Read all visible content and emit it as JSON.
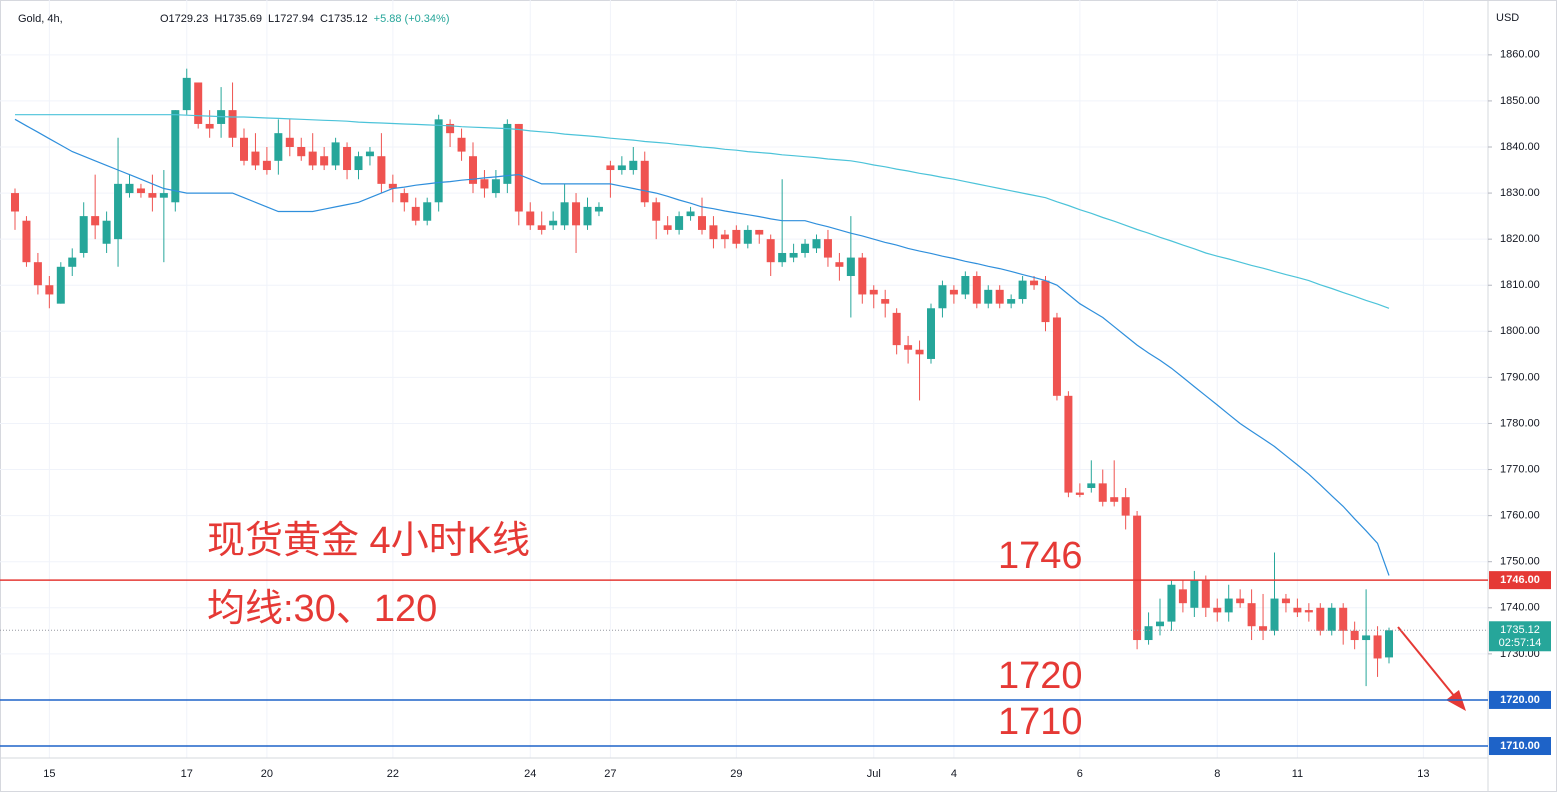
{
  "chart_data": {
    "type": "candlestick",
    "symbol": "Gold, 4h,",
    "ohlc_header": [
      "O1729.23",
      "H1735.69",
      "L1727.94",
      "C1735.12",
      "+5.88 (+0.34%)"
    ],
    "currency": "USD",
    "annotations": [
      "现货黄金 4小时K线",
      "均线:30、120"
    ],
    "up_color": "#26a69a",
    "down_color": "#ef5350",
    "grid": true,
    "ylim": [
      1707.4,
      1871.9
    ],
    "yticks": [
      {
        "value": 1730,
        "label": "1730.00"
      },
      {
        "value": 1740,
        "label": "1740.00"
      },
      {
        "value": 1750,
        "label": "1750.00"
      },
      {
        "value": 1760,
        "label": "1760.00"
      },
      {
        "value": 1770,
        "label": "1770.00"
      },
      {
        "value": 1780,
        "label": "1780.00"
      },
      {
        "value": 1790,
        "label": "1790.00"
      },
      {
        "value": 1800,
        "label": "1800.00"
      },
      {
        "value": 1810,
        "label": "1810.00"
      },
      {
        "value": 1820,
        "label": "1820.00"
      },
      {
        "value": 1830,
        "label": "1830.00"
      },
      {
        "value": 1840,
        "label": "1840.00"
      },
      {
        "value": 1850,
        "label": "1850.00"
      },
      {
        "value": 1860,
        "label": "1860.00"
      }
    ],
    "price_lines": [
      {
        "value": 1746,
        "label": "1746.00",
        "color": "#e53935"
      },
      {
        "value": 1720,
        "label": "1720.00",
        "color": "#1e63c8"
      },
      {
        "value": 1710,
        "label": "1710.00",
        "color": "#1e63c8"
      }
    ],
    "last_price": {
      "value": 1735.12,
      "label": "1735.12",
      "countdown": "02:57:14",
      "color": "#26a69a"
    },
    "categories": [
      null,
      null,
      null,
      "15",
      null,
      null,
      null,
      null,
      null,
      null,
      null,
      null,
      null,
      null,
      null,
      "17",
      null,
      null,
      null,
      null,
      null,
      null,
      "20",
      null,
      null,
      null,
      null,
      null,
      null,
      null,
      null,
      null,
      null,
      "22",
      null,
      null,
      null,
      null,
      null,
      null,
      null,
      null,
      null,
      null,
      null,
      "24",
      null,
      null,
      null,
      null,
      null,
      null,
      "27",
      null,
      null,
      null,
      null,
      null,
      null,
      null,
      null,
      null,
      null,
      "29",
      null,
      null,
      null,
      null,
      null,
      null,
      null,
      null,
      null,
      null,
      null,
      "Jul",
      null,
      null,
      null,
      null,
      null,
      null,
      "4",
      null,
      null,
      null,
      null,
      null,
      null,
      null,
      null,
      null,
      null,
      "6",
      null,
      null,
      null,
      null,
      null,
      null,
      null,
      null,
      null,
      null,
      null,
      "8",
      null,
      null,
      null,
      null,
      null,
      null,
      "11",
      null,
      null,
      null,
      null,
      null,
      null,
      null,
      null,
      null,
      null,
      "13",
      null,
      null,
      null,
      null,
      null
    ],
    "open": [
      1830,
      1824,
      1815,
      1810,
      1806,
      1814,
      1817,
      1825,
      1819,
      1820,
      1830,
      1831,
      1830,
      1829,
      1828,
      1848,
      1854,
      1845,
      1845,
      1848,
      1842,
      1839,
      1837,
      1837,
      1842,
      1840,
      1839,
      1838,
      1836,
      1840,
      1835,
      1838,
      1838,
      1832,
      1830,
      1827,
      1824,
      1828,
      1845,
      1842,
      1838,
      1833,
      1830,
      1832,
      1845,
      1826,
      1823,
      1823,
      1823,
      1828,
      1823,
      1826,
      1836,
      1835,
      1835,
      1837,
      1828,
      1823,
      1822,
      1825,
      1825,
      1823,
      1821,
      1822,
      1819,
      1822,
      1820,
      1815,
      1816,
      1817,
      1818,
      1820,
      1815,
      1812,
      1816,
      1809,
      1807,
      1804,
      1797,
      1796,
      1794,
      1805,
      1809,
      1808,
      1812,
      1806,
      1809,
      1806,
      1807,
      1811,
      1811,
      1803,
      1786,
      1765,
      1766,
      1767,
      1764,
      1764,
      1760,
      1733,
      1736,
      1737,
      1744,
      1740,
      1746,
      1740,
      1739,
      1742,
      1741,
      1736,
      1735,
      1742,
      1740,
      1739.5,
      1740,
      1735,
      1740,
      1735,
      1733,
      1734,
      1729.23,
      null,
      null,
      null,
      null,
      null,
      null,
      null,
      null
    ],
    "high": [
      1831,
      1825,
      1817,
      1812,
      1815,
      1818,
      1828,
      1834,
      1826,
      1842,
      1834,
      1832,
      1834,
      1835,
      1848,
      1857,
      1854,
      1848,
      1853,
      1854,
      1844,
      1843,
      1840,
      1846,
      1846,
      1842,
      1843,
      1840,
      1842,
      1841,
      1839,
      1840,
      1843,
      1834,
      1831,
      1829,
      1829,
      1847,
      1846,
      1844,
      1841,
      1835,
      1835,
      1846,
      1845,
      1828,
      1826,
      1826,
      1832,
      1830,
      1829,
      1828,
      1837,
      1838,
      1840,
      1839,
      1829,
      1825,
      1826,
      1827,
      1829,
      1825,
      1822,
      1823,
      1823,
      1822,
      1821,
      1833,
      1819,
      1820,
      1821,
      1822,
      1817,
      1825,
      1817,
      1810,
      1809,
      1805,
      1799,
      1798,
      1806,
      1811,
      1810,
      1813,
      1813,
      1810,
      1810,
      1808,
      1812,
      1812,
      1812,
      1804,
      1787,
      1767,
      1772,
      1770,
      1772,
      1766,
      1761,
      1739,
      1742,
      1746,
      1746,
      1748,
      1747,
      1742,
      1745,
      1744,
      1744,
      1743,
      1752,
      1743,
      1742,
      1741,
      1741,
      1741,
      1741,
      1737,
      1744,
      1736,
      1735.69,
      null,
      null,
      null,
      null,
      null,
      null,
      null,
      null
    ],
    "low": [
      1822,
      1814,
      1808,
      1805,
      1806,
      1812,
      1816,
      1820,
      1817,
      1814,
      1829,
      1829,
      1826,
      1815,
      1826,
      1847,
      1844,
      1842,
      1842,
      1840,
      1836,
      1835,
      1834,
      1834,
      1838,
      1837,
      1835,
      1835,
      1835,
      1833,
      1833,
      1836,
      1830,
      1828,
      1826,
      1823,
      1823,
      1826,
      1840,
      1837,
      1830,
      1829,
      1829,
      1830,
      1823,
      1822,
      1821,
      1822,
      1822,
      1817,
      1822,
      1825,
      1829,
      1834,
      1834,
      1827,
      1820,
      1821,
      1821,
      1824,
      1821,
      1818,
      1818,
      1818,
      1818,
      1819,
      1812,
      1814,
      1815,
      1816,
      1817,
      1814,
      1811,
      1803,
      1806,
      1805,
      1803,
      1795,
      1793,
      1785,
      1793,
      1803,
      1806,
      1807,
      1805,
      1805,
      1805,
      1805,
      1806,
      1809,
      1800,
      1785,
      1764,
      1764,
      1765,
      1762,
      1762,
      1757,
      1731,
      1732,
      1734,
      1735,
      1739,
      1738,
      1738,
      1737,
      1737,
      1740,
      1733,
      1733,
      1734,
      1739,
      1738,
      1737,
      1734,
      1734,
      1732,
      1731,
      1723,
      1725,
      1727.94,
      null,
      null,
      null,
      null,
      null,
      null,
      null,
      null
    ],
    "close": [
      1826,
      1815,
      1810,
      1808,
      1814,
      1816,
      1825,
      1823,
      1824,
      1832,
      1832,
      1830,
      1829,
      1830,
      1848,
      1855,
      1845,
      1844,
      1848,
      1842,
      1837,
      1836,
      1835,
      1843,
      1840,
      1838,
      1836,
      1836,
      1841,
      1835,
      1838,
      1839,
      1832,
      1831,
      1828,
      1824,
      1828,
      1846,
      1843,
      1839,
      1832,
      1831,
      1833,
      1845,
      1826,
      1823,
      1822,
      1824,
      1828,
      1823,
      1827,
      1827,
      1835,
      1836,
      1837,
      1828,
      1824,
      1822,
      1825,
      1826,
      1822,
      1820,
      1820,
      1819,
      1822,
      1821,
      1815,
      1817,
      1817,
      1819,
      1820,
      1816,
      1814,
      1816,
      1808,
      1808,
      1806,
      1797,
      1796,
      1795,
      1805,
      1810,
      1808,
      1812,
      1806,
      1809,
      1806,
      1807,
      1811,
      1810,
      1802,
      1786,
      1765,
      1764.5,
      1767,
      1763,
      1763,
      1760,
      1733,
      1736,
      1737,
      1745,
      1741,
      1746,
      1740,
      1739,
      1742,
      1741,
      1736,
      1735,
      1742,
      1741,
      1739,
      1739,
      1735,
      1740,
      1735,
      1733,
      1734,
      1729,
      1735.12,
      null,
      null,
      null,
      null,
      null,
      null,
      null,
      null
    ],
    "series": [
      {
        "color": "#2f8fdc",
        "values": [
          1846,
          1844.6,
          1843.2,
          1841.8,
          1840.4,
          1839,
          1838,
          1837,
          1836,
          1835,
          1834,
          1833,
          1832,
          1831,
          1830.5,
          1830,
          1830,
          1830,
          1830,
          1830,
          1829,
          1828,
          1827,
          1826,
          1826,
          1826,
          1826,
          1826.5,
          1827,
          1827.5,
          1828,
          1829,
          1830,
          1831,
          1831.3,
          1831.7,
          1832,
          1832.3,
          1832.5,
          1832.8,
          1833,
          1833.3,
          1833.5,
          1833.8,
          1834,
          1833,
          1832,
          1832,
          1832,
          1832,
          1832,
          1832,
          1832,
          1831.5,
          1831,
          1830.5,
          1830,
          1829.3,
          1828.5,
          1827.8,
          1827,
          1826.6,
          1826.1,
          1825.7,
          1825.3,
          1824.9,
          1824.4,
          1824,
          1824,
          1824,
          1823.3,
          1822.7,
          1822,
          1821.3,
          1820.7,
          1820,
          1819.3,
          1818.7,
          1818,
          1817.4,
          1816.9,
          1816.3,
          1815.8,
          1815.2,
          1814.7,
          1814.1,
          1813.6,
          1813,
          1812.3,
          1811.7,
          1811,
          1810,
          1808,
          1806,
          1804.5,
          1803,
          1801,
          1799,
          1797,
          1795.3,
          1793.7,
          1792,
          1790,
          1788,
          1786,
          1784,
          1782,
          1780,
          1778.3,
          1776.7,
          1775,
          1773,
          1771,
          1769,
          1766.7,
          1764.3,
          1762,
          1759.3,
          1756.7,
          1754,
          1747,
          null,
          null,
          null,
          null,
          null,
          null,
          null,
          null
        ]
      },
      {
        "color": "#4cc3d9",
        "values": [
          1847,
          1847,
          1847,
          1847,
          1847,
          1847,
          1847,
          1847,
          1847,
          1847,
          1847,
          1847,
          1847,
          1847,
          1847,
          1846.9,
          1846.8,
          1846.7,
          1846.6,
          1846.5,
          1846.5,
          1846.4,
          1846.3,
          1846.2,
          1846.1,
          1846,
          1845.9,
          1845.8,
          1845.7,
          1845.6,
          1845.4,
          1845.3,
          1845.2,
          1845.1,
          1845,
          1844.9,
          1844.8,
          1844.7,
          1844.6,
          1844.4,
          1844.3,
          1844.2,
          1844.1,
          1844,
          1843.8,
          1843.5,
          1843.3,
          1843.1,
          1842.8,
          1842.6,
          1842.4,
          1842.2,
          1841.9,
          1841.7,
          1841.5,
          1841.2,
          1841,
          1840.8,
          1840.5,
          1840.3,
          1840,
          1839.8,
          1839.5,
          1839.3,
          1839,
          1838.8,
          1838.6,
          1838.3,
          1838.1,
          1837.9,
          1837.7,
          1837.4,
          1837.2,
          1837,
          1836.6,
          1836.1,
          1835.7,
          1835.2,
          1834.8,
          1834.3,
          1833.9,
          1833.4,
          1833,
          1832.5,
          1832,
          1831.5,
          1831,
          1830.5,
          1830,
          1829.5,
          1829,
          1828.1,
          1827.3,
          1826.4,
          1825.6,
          1824.7,
          1823.9,
          1823,
          1822.1,
          1821.3,
          1820.4,
          1819.6,
          1818.7,
          1817.9,
          1817,
          1816.3,
          1815.7,
          1815,
          1814.3,
          1813.7,
          1813,
          1812.3,
          1811.7,
          1811,
          1810.1,
          1809.3,
          1808.4,
          1807.6,
          1806.7,
          1805.9,
          1805,
          null,
          null,
          null,
          null,
          null,
          null,
          null,
          null
        ]
      }
    ]
  }
}
